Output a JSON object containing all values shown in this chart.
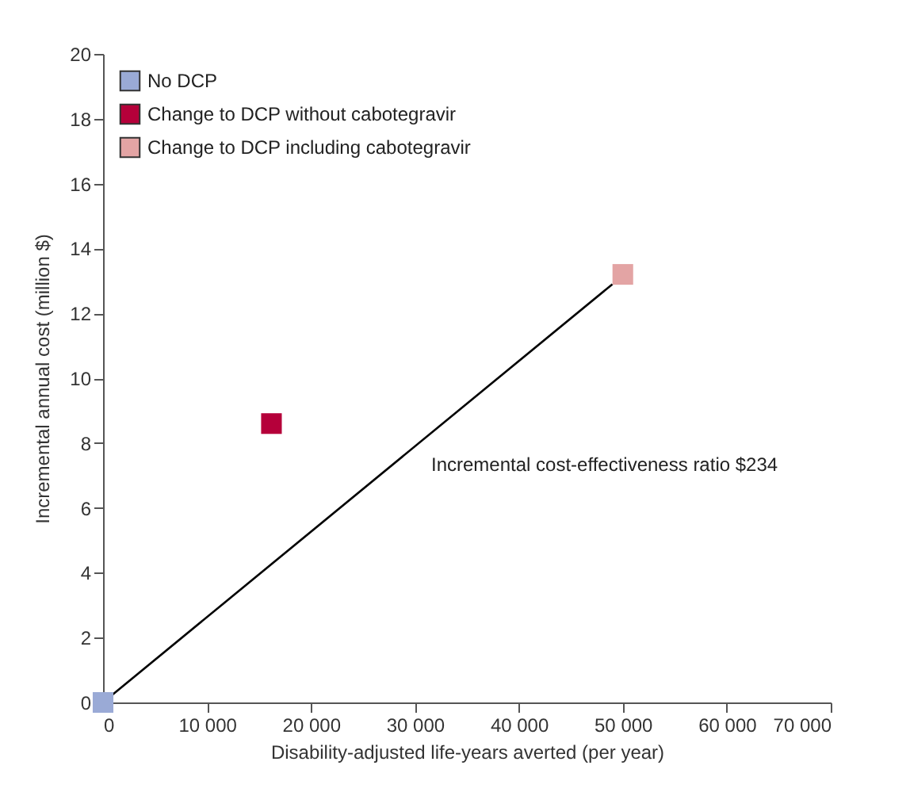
{
  "chart_data": {
    "type": "scatter",
    "xlabel": "Disability-adjusted life-years averted (per year)",
    "ylabel": "Incremental annual cost  (million $)",
    "xlim": [
      0,
      70000
    ],
    "ylim": [
      0,
      20
    ],
    "xticks": [
      0,
      {
        "value": 10000,
        "label": "10 000"
      },
      {
        "value": 20000,
        "label": "20 000"
      },
      {
        "value": 30000,
        "label": "30 000"
      },
      {
        "value": 40000,
        "label": "40 000"
      },
      {
        "value": 50000,
        "label": "50 000"
      },
      {
        "value": 60000,
        "label": "60 000"
      },
      {
        "value": 70000,
        "label": "70 000"
      }
    ],
    "yticks": [
      0,
      2,
      4,
      6,
      8,
      10,
      12,
      14,
      16,
      18,
      20
    ],
    "marker": "square",
    "legend": "top left",
    "grid": false,
    "series": [
      {
        "name": "No DCP",
        "color": "#9aaad6",
        "x": [
          0
        ],
        "values": [
          0
        ]
      },
      {
        "name": "Change to DCP without cabotegravir",
        "color": "#b5003a",
        "x": [
          16200
        ],
        "values": [
          8.6
        ]
      },
      {
        "name": "Change to DCP including cabotegravir",
        "color": "#e3a4a4",
        "x": [
          50000
        ],
        "values": [
          13.2
        ]
      },
      {
        "type": "line",
        "marker": "none",
        "color": "#000000",
        "x": [
          0,
          49000
        ],
        "values": [
          0,
          12.9
        ]
      }
    ],
    "annotations": [
      "Incremental cost-effectiveness ratio $234"
    ]
  }
}
